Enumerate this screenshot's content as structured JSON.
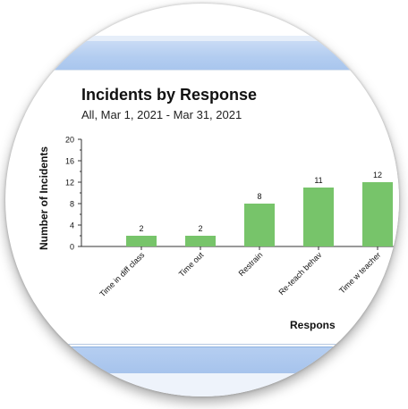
{
  "chart_data": {
    "type": "bar",
    "title": "Incidents by Response",
    "subtitle": "All, Mar 1, 2021 - Mar 31, 2021",
    "xlabel": "Respons",
    "ylabel": "Number of Incidents",
    "ylim": [
      0,
      20
    ],
    "yticks": [
      "0",
      "4",
      "8",
      "12",
      "16",
      "20"
    ],
    "categories": [
      "Time in diff class",
      "Time out",
      "Restrain",
      "Re-teach behav",
      "Time w teacher"
    ],
    "values": [
      2,
      2,
      8,
      11,
      12
    ],
    "data_labels": [
      "2",
      "2",
      "8",
      "11",
      "12"
    ],
    "bar_color": "#77c46a",
    "grid": false,
    "legend": "none"
  }
}
